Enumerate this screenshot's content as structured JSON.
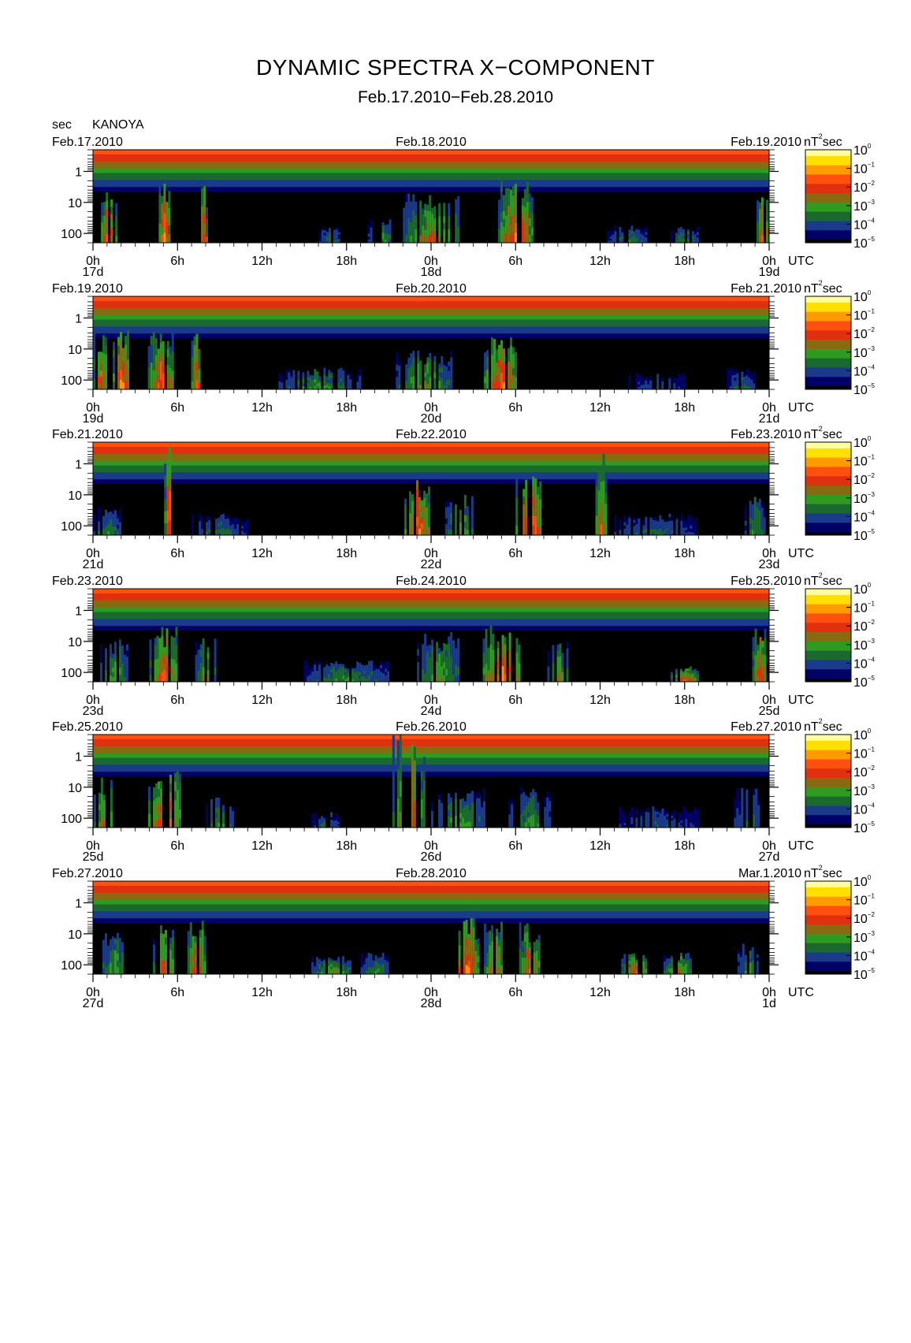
{
  "header": {
    "title": "DYNAMIC SPECTRA X−COMPONENT",
    "subtitle": "Feb.17.2010−Feb.28.2010",
    "unit_label": "sec",
    "station": "KANOYA"
  },
  "chart_data": {
    "type": "heatmap",
    "x_axis": {
      "range_hours": [
        0,
        48
      ],
      "tick_hours": [
        0,
        6,
        12,
        18,
        24,
        30,
        36,
        42,
        48
      ],
      "tick_labels": [
        "0h",
        "6h",
        "12h",
        "18h",
        "0h",
        "6h",
        "12h",
        "18h",
        "0h"
      ],
      "unit_label": "UTC"
    },
    "y_axis": {
      "label": "sec",
      "scale": "log",
      "inverted": true,
      "range_sec": [
        0.2,
        200
      ],
      "tick_labels": [
        "1",
        "10",
        "100"
      ]
    },
    "colorbar": {
      "unit": "nT²sec",
      "unit_base": "nT",
      "unit_sup": "2",
      "unit_suffix": "sec",
      "scale": "log",
      "range": [
        1e-05,
        1
      ],
      "tick_base": "10",
      "tick_exponents": [
        "0",
        "−1",
        "−2",
        "−3",
        "−4",
        "−5"
      ],
      "colors": [
        "#000000",
        "#000066",
        "#1a3a8a",
        "#1a6a30",
        "#2e9a20",
        "#8a6a10",
        "#e03010",
        "#ff5010",
        "#ff9a00",
        "#ffe000",
        "#ffffa0"
      ]
    },
    "panels": [
      {
        "date_left": "Feb.17.2010",
        "date_mid": "Feb.18.2010",
        "date_right": "Feb.19.2010",
        "day_labels": [
          "17d",
          "18d",
          "19d"
        ],
        "activity": [
          {
            "center_h": 1.0,
            "width_h": 1.2,
            "level": 0.85,
            "top_sec": 3
          },
          {
            "center_h": 5.0,
            "width_h": 1.0,
            "level": 0.85,
            "top_sec": 2
          },
          {
            "center_h": 7.8,
            "width_h": 0.6,
            "level": 0.8,
            "top_sec": 3
          },
          {
            "center_h": 16.8,
            "width_h": 1.5,
            "level": 0.4,
            "top_sec": 60
          },
          {
            "center_h": 20.5,
            "width_h": 2.0,
            "level": 0.45,
            "top_sec": 30
          },
          {
            "center_h": 24.0,
            "width_h": 4.0,
            "level": 0.65,
            "top_sec": 5
          },
          {
            "center_h": 30.0,
            "width_h": 2.5,
            "level": 0.85,
            "top_sec": 2
          },
          {
            "center_h": 38.0,
            "width_h": 3.0,
            "level": 0.4,
            "top_sec": 50
          },
          {
            "center_h": 42.0,
            "width_h": 2.0,
            "level": 0.45,
            "top_sec": 60
          },
          {
            "center_h": 47.5,
            "width_h": 0.8,
            "level": 0.8,
            "top_sec": 5
          }
        ]
      },
      {
        "date_left": "Feb.19.2010",
        "date_mid": "Feb.20.2010",
        "date_right": "Feb.21.2010",
        "day_labels": [
          "19d",
          "20d",
          "21d"
        ],
        "activity": [
          {
            "center_h": 0.5,
            "width_h": 1.0,
            "level": 0.8,
            "top_sec": 2
          },
          {
            "center_h": 2.0,
            "width_h": 1.2,
            "level": 0.85,
            "top_sec": 2
          },
          {
            "center_h": 4.8,
            "width_h": 1.8,
            "level": 0.85,
            "top_sec": 2
          },
          {
            "center_h": 7.3,
            "width_h": 1.0,
            "level": 0.75,
            "top_sec": 3
          },
          {
            "center_h": 16.0,
            "width_h": 6.0,
            "level": 0.45,
            "top_sec": 40
          },
          {
            "center_h": 23.5,
            "width_h": 4.0,
            "level": 0.55,
            "top_sec": 10
          },
          {
            "center_h": 29.0,
            "width_h": 2.5,
            "level": 0.85,
            "top_sec": 3
          },
          {
            "center_h": 40.0,
            "width_h": 4.0,
            "level": 0.3,
            "top_sec": 60
          },
          {
            "center_h": 46.0,
            "width_h": 2.0,
            "level": 0.35,
            "top_sec": 40
          }
        ]
      },
      {
        "date_left": "Feb.21.2010",
        "date_mid": "Feb.22.2010",
        "date_right": "Feb.23.2010",
        "day_labels": [
          "21d",
          "22d",
          "23d"
        ],
        "activity": [
          {
            "center_h": 1.0,
            "width_h": 2.0,
            "level": 0.4,
            "top_sec": 20
          },
          {
            "center_h": 5.3,
            "width_h": 0.5,
            "level": 1.0,
            "top_sec": 0.2
          },
          {
            "center_h": 9.0,
            "width_h": 4.0,
            "level": 0.35,
            "top_sec": 40
          },
          {
            "center_h": 23.0,
            "width_h": 1.8,
            "level": 0.9,
            "top_sec": 3
          },
          {
            "center_h": 26.0,
            "width_h": 2.0,
            "level": 0.55,
            "top_sec": 10
          },
          {
            "center_h": 31.0,
            "width_h": 2.0,
            "level": 0.9,
            "top_sec": 2
          },
          {
            "center_h": 36.0,
            "width_h": 1.0,
            "level": 0.75,
            "top_sec": 0.2
          },
          {
            "center_h": 40.0,
            "width_h": 6.0,
            "level": 0.35,
            "top_sec": 40
          },
          {
            "center_h": 47.0,
            "width_h": 1.5,
            "level": 0.45,
            "top_sec": 10
          }
        ]
      },
      {
        "date_left": "Feb.23.2010",
        "date_mid": "Feb.24.2010",
        "date_right": "Feb.25.2010",
        "day_labels": [
          "23d",
          "24d",
          "25d"
        ],
        "activity": [
          {
            "center_h": 1.5,
            "width_h": 2.0,
            "level": 0.5,
            "top_sec": 8
          },
          {
            "center_h": 5.0,
            "width_h": 2.0,
            "level": 0.8,
            "top_sec": 3
          },
          {
            "center_h": 8.0,
            "width_h": 1.5,
            "level": 0.55,
            "top_sec": 8
          },
          {
            "center_h": 18.0,
            "width_h": 6.0,
            "level": 0.45,
            "top_sec": 40
          },
          {
            "center_h": 24.5,
            "width_h": 3.0,
            "level": 0.55,
            "top_sec": 5
          },
          {
            "center_h": 29.0,
            "width_h": 3.0,
            "level": 0.85,
            "top_sec": 3
          },
          {
            "center_h": 33.0,
            "width_h": 1.5,
            "level": 0.55,
            "top_sec": 10
          },
          {
            "center_h": 42.0,
            "width_h": 2.0,
            "level": 0.75,
            "top_sec": 60
          },
          {
            "center_h": 47.3,
            "width_h": 1.0,
            "level": 0.8,
            "top_sec": 3
          }
        ]
      },
      {
        "date_left": "Feb.25.2010",
        "date_mid": "Feb.26.2010",
        "date_right": "Feb.27.2010",
        "day_labels": [
          "25d",
          "26d",
          "27d"
        ],
        "activity": [
          {
            "center_h": 0.8,
            "width_h": 1.5,
            "level": 0.7,
            "top_sec": 4
          },
          {
            "center_h": 5.0,
            "width_h": 2.5,
            "level": 0.85,
            "top_sec": 3
          },
          {
            "center_h": 9.0,
            "width_h": 2.0,
            "level": 0.45,
            "top_sec": 20
          },
          {
            "center_h": 16.5,
            "width_h": 2.0,
            "level": 0.35,
            "top_sec": 60
          },
          {
            "center_h": 22.5,
            "width_h": 2.5,
            "level": 0.7,
            "top_sec": 0.2
          },
          {
            "center_h": 26.0,
            "width_h": 4.0,
            "level": 0.5,
            "top_sec": 10
          },
          {
            "center_h": 31.0,
            "width_h": 3.0,
            "level": 0.45,
            "top_sec": 10
          },
          {
            "center_h": 40.0,
            "width_h": 6.0,
            "level": 0.3,
            "top_sec": 40
          },
          {
            "center_h": 46.5,
            "width_h": 2.0,
            "level": 0.4,
            "top_sec": 10
          }
        ]
      },
      {
        "date_left": "Feb.27.2010",
        "date_mid": "Feb.28.2010",
        "date_right": "Mar.1.2010",
        "day_labels": [
          "27d",
          "28d",
          "1d"
        ],
        "activity": [
          {
            "center_h": 1.5,
            "width_h": 2.0,
            "level": 0.5,
            "top_sec": 8
          },
          {
            "center_h": 5.0,
            "width_h": 1.5,
            "level": 0.75,
            "top_sec": 5
          },
          {
            "center_h": 7.3,
            "width_h": 1.2,
            "level": 0.85,
            "top_sec": 3
          },
          {
            "center_h": 17.0,
            "width_h": 3.0,
            "level": 0.55,
            "top_sec": 50
          },
          {
            "center_h": 20.0,
            "width_h": 2.0,
            "level": 0.45,
            "top_sec": 40
          },
          {
            "center_h": 26.5,
            "width_h": 1.8,
            "level": 0.85,
            "top_sec": 3
          },
          {
            "center_h": 28.5,
            "width_h": 1.5,
            "level": 0.7,
            "top_sec": 4
          },
          {
            "center_h": 31.0,
            "width_h": 1.5,
            "level": 0.8,
            "top_sec": 4
          },
          {
            "center_h": 38.5,
            "width_h": 2.0,
            "level": 0.75,
            "top_sec": 40
          },
          {
            "center_h": 41.5,
            "width_h": 2.0,
            "level": 0.65,
            "top_sec": 40
          },
          {
            "center_h": 46.5,
            "width_h": 1.5,
            "level": 0.5,
            "top_sec": 20
          }
        ]
      }
    ]
  }
}
